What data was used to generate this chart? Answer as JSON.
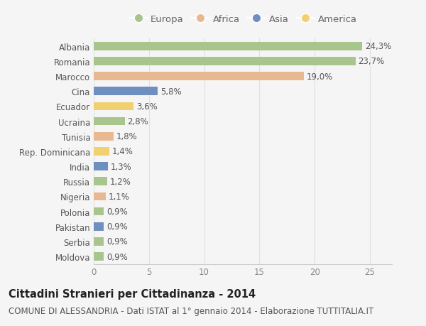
{
  "countries": [
    "Albania",
    "Romania",
    "Marocco",
    "Cina",
    "Ecuador",
    "Ucraina",
    "Tunisia",
    "Rep. Dominicana",
    "India",
    "Russia",
    "Nigeria",
    "Polonia",
    "Pakistan",
    "Serbia",
    "Moldova"
  ],
  "values": [
    24.3,
    23.7,
    19.0,
    5.8,
    3.6,
    2.8,
    1.8,
    1.4,
    1.3,
    1.2,
    1.1,
    0.9,
    0.9,
    0.9,
    0.9
  ],
  "labels": [
    "24,3%",
    "23,7%",
    "19,0%",
    "5,8%",
    "3,6%",
    "2,8%",
    "1,8%",
    "1,4%",
    "1,3%",
    "1,2%",
    "1,1%",
    "0,9%",
    "0,9%",
    "0,9%",
    "0,9%"
  ],
  "regions": [
    "Europa",
    "Europa",
    "Africa",
    "Asia",
    "America",
    "Europa",
    "Africa",
    "America",
    "Asia",
    "Europa",
    "Africa",
    "Europa",
    "Asia",
    "Europa",
    "Europa"
  ],
  "region_colors": {
    "Europa": "#a8c58e",
    "Africa": "#e8b990",
    "Asia": "#6e8fbf",
    "America": "#f0d070"
  },
  "legend_order": [
    "Europa",
    "Africa",
    "Asia",
    "America"
  ],
  "title": "Cittadini Stranieri per Cittadinanza - 2014",
  "subtitle": "COMUNE DI ALESSANDRIA - Dati ISTAT al 1° gennaio 2014 - Elaborazione TUTTITALIA.IT",
  "xlim": [
    0,
    27
  ],
  "xticks": [
    0,
    5,
    10,
    15,
    20,
    25
  ],
  "background_color": "#f5f5f5",
  "grid_color": "#e0e0e0",
  "bar_height": 0.55,
  "title_fontsize": 10.5,
  "subtitle_fontsize": 8.5,
  "tick_label_fontsize": 8.5,
  "value_label_fontsize": 8.5,
  "legend_fontsize": 9.5
}
